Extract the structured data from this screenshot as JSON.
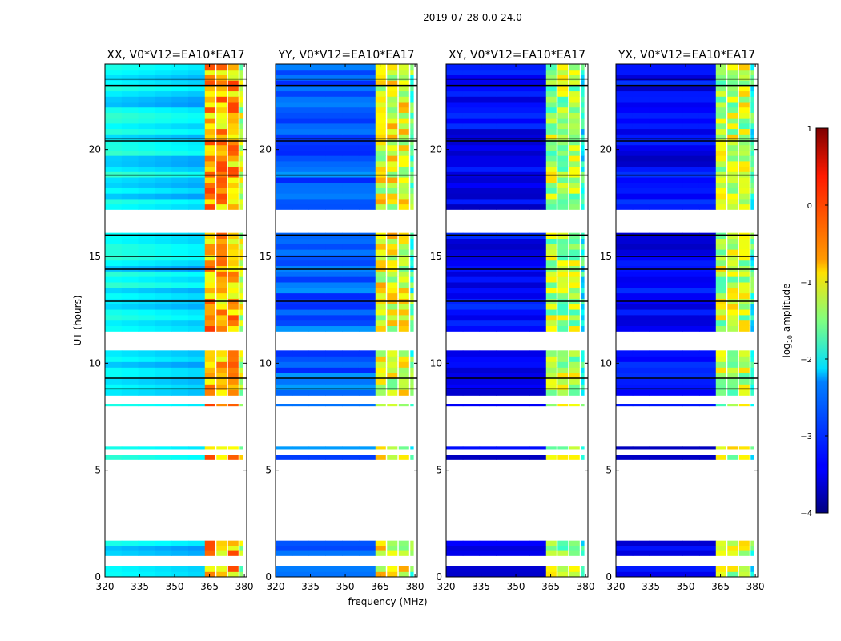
{
  "figure_title": "2019-07-28 0.0-24.0",
  "chart_data": {
    "type": "heatmap",
    "suptitle": "2019-07-28 0.0-24.0",
    "xlabel": "frequency (MHz)",
    "ylabel": "UT (hours)",
    "xlim": [
      320,
      381
    ],
    "ylim": [
      0,
      24
    ],
    "xticks": [
      320,
      335,
      350,
      365,
      380
    ],
    "yticks": [
      0,
      5,
      10,
      15,
      20
    ],
    "panels": [
      {
        "title": "XX, V0*V12=EA10*EA17",
        "polarization": "XX",
        "baseline": "V0*V12=EA10*EA17",
        "background_level": -2.4,
        "band_peak": 0.1
      },
      {
        "title": "YY, V0*V12=EA10*EA17",
        "polarization": "YY",
        "baseline": "V0*V12=EA10*EA17",
        "background_level": -2.9,
        "band_peak": -0.4
      },
      {
        "title": "XY, V0*V12=EA10*EA17",
        "polarization": "XY",
        "baseline": "V0*V12=EA10*EA17",
        "background_level": -3.4,
        "band_peak": -0.7
      },
      {
        "title": "YX, V0*V12=EA10*EA17",
        "polarization": "YX",
        "baseline": "V0*V12=EA10*EA17",
        "background_level": -3.4,
        "band_peak": -0.6
      }
    ],
    "observed_ut_intervals": [
      [
        0.0,
        0.5
      ],
      [
        1.0,
        1.7
      ],
      [
        5.5,
        5.7
      ],
      [
        6.0,
        6.1
      ],
      [
        8.0,
        8.1
      ],
      [
        8.5,
        10.6
      ],
      [
        11.5,
        16.1
      ],
      [
        17.2,
        24.0
      ]
    ],
    "flagged_time_lines_ut": [
      9.3,
      8.8,
      12.9,
      14.4,
      15.0,
      16.0,
      18.8,
      20.4,
      20.5,
      23.0,
      23.3
    ],
    "rfi_band_mhz": [
      363,
      381
    ],
    "rfi_subband_edges_mhz": [
      368,
      373,
      378
    ],
    "colorbar": {
      "label": "log",
      "label_subscript": "10",
      "label_suffix": " amplitude",
      "min": -4,
      "max": 1,
      "ticks": [
        "−4",
        "−3",
        "−2",
        "−1",
        "0",
        "1"
      ],
      "colormap": "jet"
    }
  }
}
